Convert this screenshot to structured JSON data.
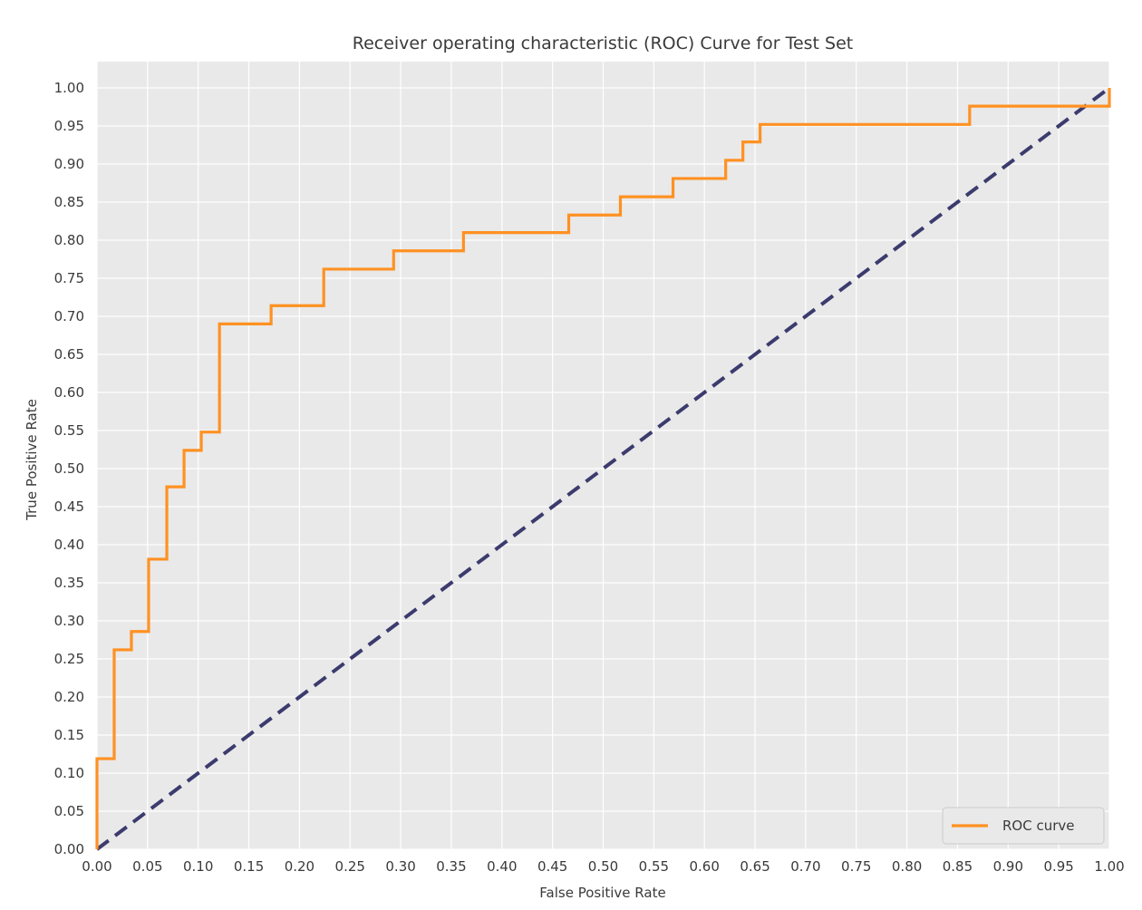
{
  "chart_data": {
    "type": "line",
    "title": "Receiver operating characteristic (ROC) Curve for Test Set",
    "xlabel": "False Positive Rate",
    "ylabel": "True Positive Rate",
    "xlim": [
      0.0,
      1.0
    ],
    "ylim": [
      0.0,
      1.0
    ],
    "x_ticks": [
      "0.00",
      "0.05",
      "0.10",
      "0.15",
      "0.20",
      "0.25",
      "0.30",
      "0.35",
      "0.40",
      "0.45",
      "0.50",
      "0.55",
      "0.60",
      "0.65",
      "0.70",
      "0.75",
      "0.80",
      "0.85",
      "0.90",
      "0.95",
      "1.00"
    ],
    "y_ticks": [
      "0.00",
      "0.05",
      "0.10",
      "0.15",
      "0.20",
      "0.25",
      "0.30",
      "0.35",
      "0.40",
      "0.45",
      "0.50",
      "0.55",
      "0.60",
      "0.65",
      "0.70",
      "0.75",
      "0.80",
      "0.85",
      "0.90",
      "0.95",
      "1.00"
    ],
    "grid": true,
    "background": "#e9e9e9",
    "legend_position": "bottom-right",
    "series": [
      {
        "name": "ROC curve",
        "color": "#ff9122",
        "style": "step",
        "x": [
          0.0,
          0.0,
          0.017,
          0.017,
          0.034,
          0.034,
          0.051,
          0.051,
          0.069,
          0.069,
          0.086,
          0.086,
          0.103,
          0.103,
          0.121,
          0.121,
          0.172,
          0.172,
          0.224,
          0.224,
          0.293,
          0.293,
          0.362,
          0.362,
          0.466,
          0.466,
          0.517,
          0.517,
          0.569,
          0.569,
          0.621,
          0.621,
          0.638,
          0.638,
          0.655,
          0.655,
          0.862,
          0.862,
          1.0,
          1.0
        ],
        "y": [
          0.0,
          0.119,
          0.119,
          0.262,
          0.262,
          0.286,
          0.286,
          0.381,
          0.381,
          0.476,
          0.476,
          0.524,
          0.524,
          0.548,
          0.548,
          0.69,
          0.69,
          0.714,
          0.714,
          0.762,
          0.762,
          0.786,
          0.786,
          0.81,
          0.81,
          0.833,
          0.833,
          0.857,
          0.857,
          0.881,
          0.881,
          0.905,
          0.905,
          0.929,
          0.929,
          0.952,
          0.952,
          0.976,
          0.976,
          1.0
        ]
      },
      {
        "name": "",
        "color": "#3c3b6e",
        "style": "dashed",
        "x": [
          0.0,
          1.0
        ],
        "y": [
          0.0,
          1.0
        ]
      }
    ],
    "legend": [
      {
        "label": "ROC curve",
        "color": "#ff9122"
      }
    ]
  }
}
